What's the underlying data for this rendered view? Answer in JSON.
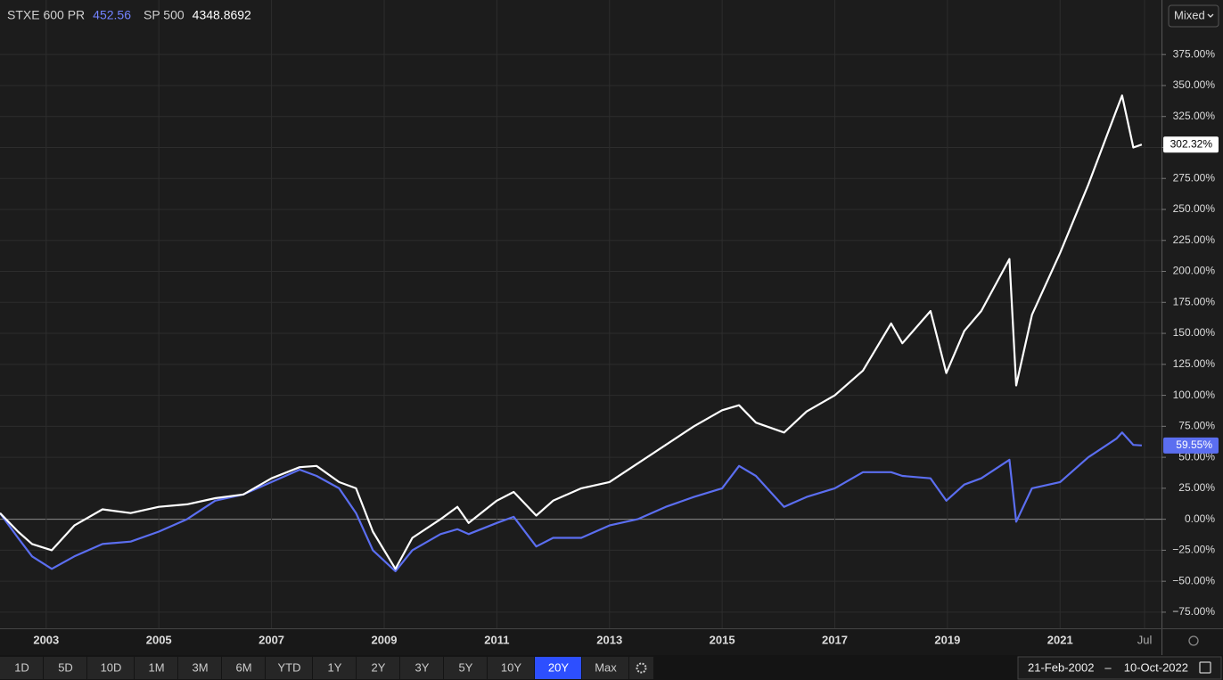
{
  "chart_data": {
    "type": "line",
    "x": [
      2002.18,
      2002.5,
      2002.75,
      2003.1,
      2003.5,
      2004,
      2004.5,
      2005,
      2005.5,
      2006,
      2006.5,
      2007,
      2007.5,
      2007.8,
      2008.2,
      2008.5,
      2008.8,
      2009.2,
      2009.5,
      2010,
      2010.3,
      2010.5,
      2011,
      2011.3,
      2011.7,
      2012,
      2012.5,
      2013,
      2013.5,
      2014,
      2014.5,
      2015,
      2015.3,
      2015.6,
      2016.1,
      2016.5,
      2017,
      2017.5,
      2018,
      2018.2,
      2018.7,
      2018.98,
      2019.3,
      2019.6,
      2020.1,
      2020.22,
      2020.5,
      2021,
      2021.5,
      2022,
      2022.1,
      2022.3,
      2022.45
    ],
    "series": [
      {
        "name": "STXE 600 PR",
        "quote": "452.56",
        "color": "#5b6ef0",
        "last_value_label": "59.55%",
        "values": [
          5,
          -15,
          -30,
          -40,
          -30,
          -20,
          -18,
          -10,
          0,
          15,
          20,
          30,
          40,
          35,
          25,
          5,
          -25,
          -42,
          -25,
          -12,
          -8,
          -12,
          -3,
          2,
          -22,
          -15,
          -15,
          -5,
          0,
          10,
          18,
          25,
          43,
          35,
          10,
          18,
          25,
          38,
          38,
          35,
          33,
          15,
          28,
          33,
          48,
          -2,
          25,
          30,
          50,
          65,
          70,
          60,
          59.55
        ]
      },
      {
        "name": "SP 500",
        "quote": "4348.8692",
        "color": "#ffffff",
        "last_value_label": "302.32%",
        "values": [
          5,
          -10,
          -20,
          -25,
          -5,
          8,
          5,
          10,
          12,
          17,
          20,
          33,
          42,
          43,
          30,
          25,
          -10,
          -40,
          -15,
          0,
          10,
          -3,
          15,
          22,
          3,
          15,
          25,
          30,
          45,
          60,
          75,
          88,
          92,
          78,
          70,
          87,
          100,
          120,
          158,
          142,
          168,
          118,
          152,
          168,
          210,
          108,
          165,
          215,
          270,
          330,
          342,
          300,
          302.32
        ]
      }
    ],
    "xlim": [
      2002.18,
      2022.8
    ],
    "xticks": [
      2003,
      2005,
      2007,
      2009,
      2011,
      2013,
      2015,
      2017,
      2019,
      2021,
      {
        "value": 2022.5,
        "label": "Jul"
      }
    ],
    "ylim": [
      -88,
      419
    ],
    "yticks": [
      {
        "value": -75,
        "label": "−75.00%"
      },
      {
        "value": -50,
        "label": "−50.00%"
      },
      {
        "value": -25,
        "label": "−25.00%"
      },
      {
        "value": 0,
        "label": "0.00%"
      },
      {
        "value": 25,
        "label": "25.00%"
      },
      {
        "value": 50,
        "label": "50.00%"
      },
      {
        "value": 75,
        "label": "75.00%"
      },
      {
        "value": 100,
        "label": "100.00%"
      },
      {
        "value": 125,
        "label": "125.00%"
      },
      {
        "value": 150,
        "label": "150.00%"
      },
      {
        "value": 175,
        "label": "175.00%"
      },
      {
        "value": 200,
        "label": "200.00%"
      },
      {
        "value": 225,
        "label": "225.00%"
      },
      {
        "value": 250,
        "label": "250.00%"
      },
      {
        "value": 275,
        "label": "275.00%"
      },
      {
        "value": 300,
        "label": "300.00%"
      },
      {
        "value": 325,
        "label": "325.00%"
      },
      {
        "value": 350,
        "label": "350.00%"
      },
      {
        "value": 375,
        "label": "375.00%"
      }
    ],
    "grid": true
  },
  "ui": {
    "scale_mode": "Mixed",
    "ranges": [
      "1D",
      "5D",
      "10D",
      "1M",
      "3M",
      "6M",
      "YTD",
      "1Y",
      "2Y",
      "3Y",
      "5Y",
      "10Y",
      "20Y",
      "Max"
    ],
    "active_range": 12,
    "date_from": "21-Feb-2002",
    "date_sep": "–",
    "date_to": "10-Oct-2022"
  }
}
